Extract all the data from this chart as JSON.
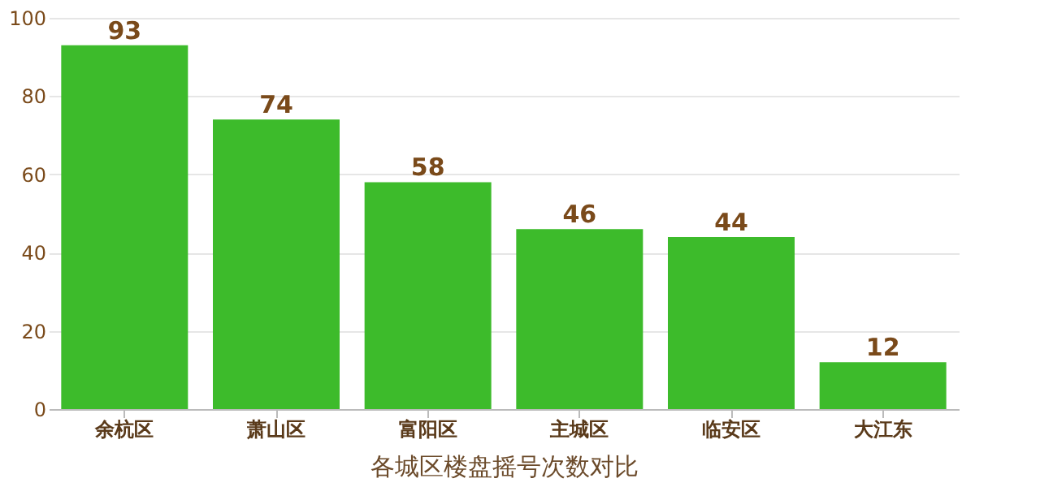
{
  "chart_data": {
    "type": "bar",
    "xlabel": "各城区楼盘摇号次数对比",
    "categories": [
      "余杭区",
      "萧山区",
      "富阳区",
      "主城区",
      "临安区",
      "大江东"
    ],
    "values": [
      93,
      74,
      58,
      46,
      44,
      12
    ],
    "color": "#3dbb2b",
    "ylim": [
      0,
      100
    ],
    "yticks": [
      0,
      20,
      40,
      60,
      80,
      100
    ],
    "grid": "y",
    "data_labels": true
  }
}
